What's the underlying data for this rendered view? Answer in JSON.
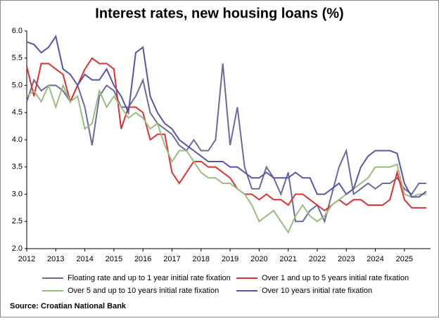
{
  "chart_data": {
    "type": "line",
    "title": "Interest rates, new housing loans (%)",
    "source": "Source:  Croatian National Bank",
    "x": [
      2012,
      2012.25,
      2012.5,
      2012.75,
      2013,
      2013.25,
      2013.5,
      2013.75,
      2014,
      2014.25,
      2014.5,
      2014.75,
      2015,
      2015.25,
      2015.5,
      2015.75,
      2016,
      2016.25,
      2016.5,
      2016.75,
      2017,
      2017.25,
      2017.5,
      2017.75,
      2018,
      2018.25,
      2018.5,
      2018.75,
      2019,
      2019.25,
      2019.5,
      2019.75,
      2020,
      2020.25,
      2020.5,
      2020.75,
      2021,
      2021.25,
      2021.5,
      2021.75,
      2022,
      2022.25,
      2022.5,
      2022.75,
      2023,
      2023.25,
      2023.5,
      2023.75,
      2024,
      2024.25,
      2024.5,
      2024.75,
      2025,
      2025.25,
      2025.5,
      2025.75
    ],
    "series": [
      {
        "name": "Floating rate and up to 1 year initial rate fixation",
        "color": "#6a6a9e",
        "values": [
          4.7,
          5.1,
          4.9,
          5.0,
          5.0,
          4.9,
          4.7,
          5.0,
          4.6,
          3.9,
          4.8,
          5.0,
          4.9,
          4.6,
          4.6,
          4.8,
          5.1,
          4.5,
          4.3,
          4.2,
          4.1,
          3.9,
          3.8,
          4.0,
          3.8,
          3.8,
          4.0,
          5.4,
          3.9,
          4.6,
          3.5,
          3.1,
          3.1,
          3.5,
          3.3,
          3.0,
          3.4,
          2.5,
          2.5,
          2.7,
          2.8,
          2.5,
          3.0,
          3.5,
          3.8,
          3.0,
          3.1,
          3.2,
          3.1,
          3.2,
          3.2,
          3.3,
          3.1,
          3.0,
          3.2,
          3.2
        ]
      },
      {
        "name": "Over 1 and up to 5 years initial rate fixation",
        "color": "#e03030",
        "values": [
          5.35,
          4.8,
          5.4,
          5.4,
          5.3,
          5.2,
          4.7,
          5.0,
          5.3,
          5.5,
          5.4,
          5.4,
          5.3,
          4.2,
          4.6,
          4.6,
          4.5,
          4.0,
          4.1,
          4.1,
          3.4,
          3.2,
          3.4,
          3.6,
          3.6,
          3.5,
          3.5,
          3.4,
          3.3,
          3.1,
          3.0,
          3.0,
          2.9,
          3.0,
          2.9,
          2.9,
          2.8,
          3.0,
          3.0,
          2.9,
          2.8,
          2.7,
          2.8,
          2.9,
          2.8,
          2.9,
          2.9,
          2.8,
          2.8,
          2.8,
          2.9,
          3.4,
          2.9,
          2.75,
          2.75,
          2.75
        ]
      },
      {
        "name": "Over 5 and up to 10 years initial rate fixation",
        "color": "#9bbb80",
        "values": [
          4.8,
          4.9,
          4.7,
          5.0,
          4.6,
          5.0,
          4.7,
          4.8,
          4.2,
          4.3,
          4.9,
          4.6,
          4.8,
          4.6,
          4.4,
          4.5,
          4.4,
          4.2,
          4.3,
          3.9,
          3.6,
          3.8,
          3.8,
          3.6,
          3.4,
          3.3,
          3.3,
          3.2,
          3.2,
          3.1,
          3.0,
          2.8,
          2.5,
          2.6,
          2.7,
          2.5,
          2.3,
          2.6,
          2.8,
          2.6,
          2.5,
          2.6,
          2.8,
          2.9,
          3.0,
          3.1,
          3.2,
          3.3,
          3.5,
          3.5,
          3.5,
          3.55,
          3.0,
          2.95,
          3.0,
          3.0
        ]
      },
      {
        "name": "Over 10 years initial rate fixation",
        "color": "#5656a6",
        "values": [
          5.8,
          5.75,
          5.6,
          5.7,
          5.9,
          5.3,
          5.2,
          5.0,
          5.2,
          5.1,
          5.1,
          5.3,
          5.0,
          4.8,
          4.5,
          5.6,
          5.7,
          4.8,
          4.5,
          4.3,
          4.2,
          4.0,
          3.9,
          3.8,
          3.7,
          3.6,
          3.6,
          3.6,
          3.5,
          3.5,
          3.4,
          3.3,
          3.3,
          3.4,
          3.3,
          3.3,
          3.3,
          3.4,
          3.3,
          3.3,
          3.0,
          3.0,
          3.1,
          3.2,
          3.0,
          3.1,
          3.5,
          3.7,
          3.8,
          3.8,
          3.8,
          3.75,
          3.2,
          2.95,
          2.95,
          3.05
        ]
      }
    ],
    "xlim": [
      2012,
      2025.9
    ],
    "xticks": [
      2012,
      2013,
      2014,
      2015,
      2016,
      2017,
      2018,
      2019,
      2020,
      2021,
      2022,
      2023,
      2024,
      2025
    ],
    "ylim": [
      2.0,
      6.0
    ],
    "yticks": [
      {
        "value": 2,
        "label": "2.0"
      },
      2.5,
      {
        "value": 3,
        "label": "3.0"
      },
      3.5,
      {
        "value": 4,
        "label": "4.0"
      },
      4.5,
      {
        "value": 5,
        "label": "5.0"
      },
      5.5,
      {
        "value": 6,
        "label": "6.0"
      }
    ],
    "grid": false
  }
}
